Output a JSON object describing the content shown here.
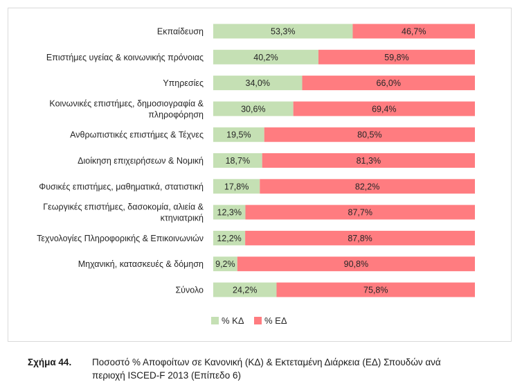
{
  "chart_data": {
    "type": "bar",
    "orientation": "horizontal",
    "stacked": true,
    "categories": [
      [
        "Εκπαίδευση"
      ],
      [
        "Επιστήμες υγείας & κοινωνικής πρόνοιας"
      ],
      [
        "Υπηρεσίες"
      ],
      [
        "Κοινωνικές επιστήμες, δημοσιογραφία &",
        "πληροφόρηση"
      ],
      [
        "Ανθρωπιστικές επιστήμες & Τέχνες"
      ],
      [
        "Διοίκηση επιχειρήσεων & Νομική"
      ],
      [
        "Φυσικές επιστήμες, μαθηματικά, στατιστική"
      ],
      [
        "Γεωργικές επιστήμες, δασοκομία, αλιεία &",
        "κτηνιατρική"
      ],
      [
        "Τεχνολογίες Πληροφορικής & Επικοινωνιών"
      ],
      [
        "Μηχανική, κατασκευές & δόμηση"
      ],
      [
        "Σύνολο"
      ]
    ],
    "series": [
      {
        "name": "% ΚΔ",
        "color": "#c5e0b4",
        "values": [
          53.3,
          40.2,
          34.0,
          30.6,
          19.5,
          18.7,
          17.8,
          12.3,
          12.2,
          9.2,
          24.2
        ],
        "labels": [
          "53,3%",
          "40,2%",
          "34,0%",
          "30,6%",
          "19,5%",
          "18,7%",
          "17,8%",
          "12,3%",
          "12,2%",
          "9,2%",
          "24,2%"
        ]
      },
      {
        "name": "% ΕΔ",
        "color": "#ff7c80",
        "values": [
          46.7,
          59.8,
          66.0,
          69.4,
          80.5,
          81.3,
          82.2,
          87.7,
          87.8,
          90.8,
          75.8
        ],
        "labels": [
          "46,7%",
          "59,8%",
          "66,0%",
          "69,4%",
          "80,5%",
          "81,3%",
          "82,2%",
          "87,7%",
          "87,8%",
          "90,8%",
          "75,8%"
        ]
      }
    ],
    "xlim": [
      0,
      100
    ],
    "legend": "bottom-center",
    "grid": false
  },
  "caption": {
    "figure_number": "Σχήμα 44.",
    "text_line1": "Ποσοστό % Αποφοίτων σε Κανονική (ΚΔ) & Εκτεταμένη Διάρκεια (ΕΔ) Σπουδών ανά",
    "text_line2": "περιοχή ISCED-F 2013 (Επίπεδο 6)"
  }
}
